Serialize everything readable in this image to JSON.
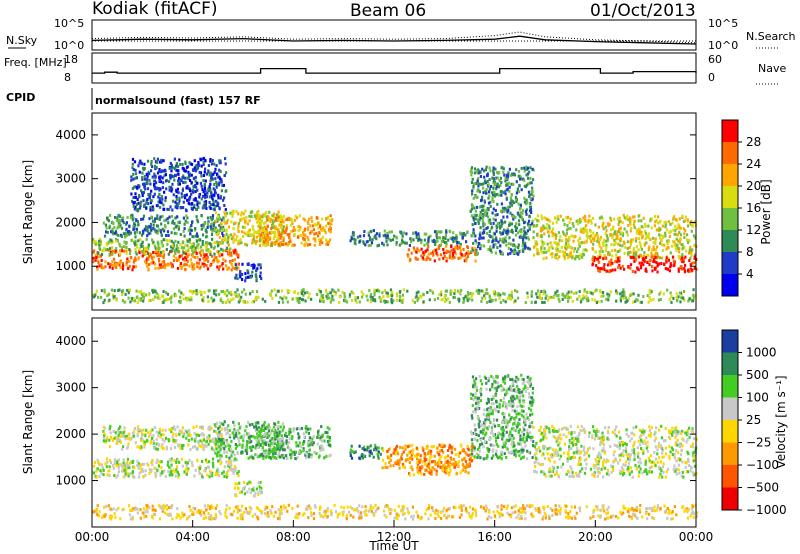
{
  "header": {
    "station": "Kodiak (fitACF)",
    "beam": "Beam 06",
    "date": "01/Oct/2013"
  },
  "cpid": {
    "label": "CPID",
    "program": "normalsound (fast) 157 RF"
  },
  "colors": {
    "power": [
      "#0000ee",
      "#1f3cc8",
      "#2e8b57",
      "#6fc040",
      "#d8dc10",
      "#ffa500",
      "#ff6a00",
      "#ff0000"
    ],
    "velocity": [
      "#ee0000",
      "#ff5500",
      "#ff9900",
      "#ffd700",
      "#c8c8c8",
      "#44cc22",
      "#2e8b57",
      "#1b3fa0"
    ]
  },
  "chart_data": [
    {
      "type": "line",
      "name": "noise-panel",
      "left_label": "N.Sky",
      "right_label": "N.Search",
      "left_ticks": [
        "10^5",
        "10^0"
      ],
      "right_ticks": [
        "10^5",
        "10^0"
      ],
      "series": [
        {
          "name": "N.Sky",
          "style": "solid",
          "x": [
            0,
            2,
            4,
            6,
            8,
            10,
            12,
            14,
            16,
            17,
            18,
            20,
            22,
            24
          ],
          "y": [
            1.6,
            1.8,
            1.7,
            1.9,
            1.5,
            1.6,
            1.5,
            1.6,
            1.8,
            2.3,
            1.7,
            1.4,
            1.2,
            1.0
          ]
        },
        {
          "name": "N.Search",
          "style": "dotted",
          "x": [
            0,
            2,
            4,
            6,
            8,
            10,
            12,
            14,
            16,
            17,
            18,
            20,
            22,
            24
          ],
          "y": [
            1.9,
            2.1,
            2.0,
            2.2,
            1.8,
            1.9,
            1.8,
            1.9,
            2.4,
            3.0,
            2.2,
            1.7,
            1.5,
            1.2
          ]
        }
      ]
    },
    {
      "type": "line",
      "name": "frequency-nave-panel",
      "left_label": "Freq. [MHz]",
      "right_label": "Nave",
      "left_ticks": [
        "18",
        "8"
      ],
      "right_ticks": [
        "60",
        "0"
      ],
      "series": [
        {
          "name": "Freq.",
          "style": "solid",
          "x": [
            0,
            0.5,
            1,
            6.4,
            6.7,
            8.2,
            8.5,
            15.9,
            16.2,
            19.9,
            20.2,
            21.3,
            21.5,
            24
          ],
          "y": [
            11.3,
            11.6,
            11.3,
            11.3,
            12.8,
            12.8,
            11.3,
            11.3,
            12.8,
            12.8,
            11.3,
            11.3,
            11.8,
            11.3
          ]
        },
        {
          "name": "Nave",
          "style": "dotted",
          "x": [
            0,
            24
          ],
          "y": [
            22,
            22
          ]
        }
      ]
    },
    {
      "type": "heatmap",
      "name": "power-panel",
      "ylabel": "Slant Range [km]",
      "colorbar_label": "Power [dB]",
      "ylim": [
        0,
        4500
      ],
      "xlim": [
        0,
        24
      ],
      "yticks": [
        1000,
        2000,
        3000,
        4000
      ],
      "colorbar_ticks": [
        "28",
        "24",
        "20",
        "16",
        "12",
        "8",
        "4"
      ],
      "regions": [
        {
          "x": [
            0.0,
            5.8
          ],
          "y": [
            950,
            1400
          ],
          "level": 6
        },
        {
          "x": [
            0.0,
            5.5
          ],
          "y": [
            1300,
            1650
          ],
          "level": 3
        },
        {
          "x": [
            0.4,
            5.2
          ],
          "y": [
            1700,
            2200
          ],
          "level": 2
        },
        {
          "x": [
            1.5,
            5.3
          ],
          "y": [
            2300,
            3500
          ],
          "level": 1
        },
        {
          "x": [
            4.8,
            7.6
          ],
          "y": [
            1500,
            2300
          ],
          "level": 4
        },
        {
          "x": [
            5.6,
            6.7
          ],
          "y": [
            700,
            1100
          ],
          "level": 1
        },
        {
          "x": [
            6.5,
            9.5
          ],
          "y": [
            1500,
            2200
          ],
          "level": 5
        },
        {
          "x": [
            10.2,
            14.9
          ],
          "y": [
            1500,
            1850
          ],
          "level": 2
        },
        {
          "x": [
            12.5,
            15.2
          ],
          "y": [
            1150,
            1500
          ],
          "level": 6
        },
        {
          "x": [
            15.0,
            17.5
          ],
          "y": [
            1300,
            3300
          ],
          "level": 2
        },
        {
          "x": [
            17.5,
            24.0
          ],
          "y": [
            1200,
            2200
          ],
          "level": 4
        },
        {
          "x": [
            19.8,
            24.0
          ],
          "y": [
            900,
            1250
          ],
          "level": 7
        },
        {
          "x": [
            0.0,
            24.0
          ],
          "y": [
            200,
            500
          ],
          "level": 3
        }
      ]
    },
    {
      "type": "heatmap",
      "name": "velocity-panel",
      "ylabel": "Slant Range [km]",
      "xlabel": "Time UT",
      "colorbar_label": "Velocity [m s⁻¹]",
      "ylim": [
        0,
        4500
      ],
      "xlim": [
        0,
        24
      ],
      "yticks": [
        1000,
        2000,
        3000,
        4000
      ],
      "xticks": [
        "00:00",
        "04:00",
        "08:00",
        "12:00",
        "16:00",
        "20:00",
        "00:00"
      ],
      "colorbar_ticks": [
        "1000",
        "500",
        "100",
        "25",
        "−25",
        "−100",
        "−500",
        "−1000"
      ],
      "regions": [
        {
          "x": [
            0.0,
            5.8
          ],
          "y": [
            1100,
            1500
          ],
          "level": 4
        },
        {
          "x": [
            0.4,
            5.2
          ],
          "y": [
            1700,
            2200
          ],
          "level": 4
        },
        {
          "x": [
            4.8,
            7.6
          ],
          "y": [
            1500,
            2300
          ],
          "level": 5
        },
        {
          "x": [
            5.6,
            6.7
          ],
          "y": [
            700,
            1000
          ],
          "level": 4
        },
        {
          "x": [
            6.5,
            9.5
          ],
          "y": [
            1500,
            2200
          ],
          "level": 5
        },
        {
          "x": [
            10.2,
            11.5
          ],
          "y": [
            1500,
            1800
          ],
          "level": 6
        },
        {
          "x": [
            11.5,
            15.2
          ],
          "y": [
            1300,
            1800
          ],
          "level": 2
        },
        {
          "x": [
            12.5,
            15.0
          ],
          "y": [
            1150,
            1400
          ],
          "level": 2
        },
        {
          "x": [
            15.0,
            17.5
          ],
          "y": [
            1500,
            3300
          ],
          "level": 5
        },
        {
          "x": [
            17.5,
            24.0
          ],
          "y": [
            1100,
            2200
          ],
          "level": 4
        },
        {
          "x": [
            0.0,
            24.0
          ],
          "y": [
            200,
            500
          ],
          "level": 3
        }
      ]
    }
  ]
}
